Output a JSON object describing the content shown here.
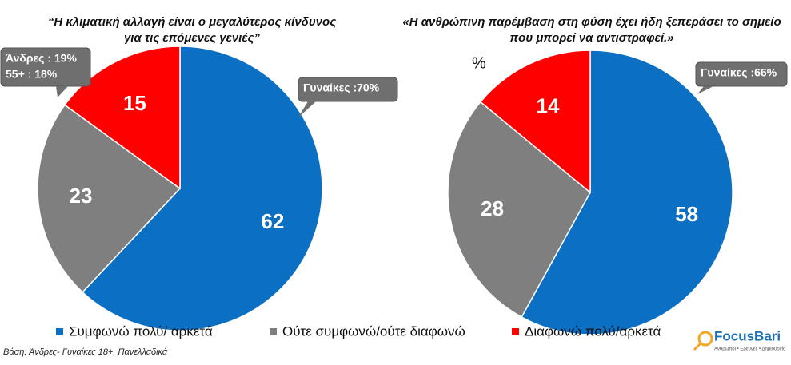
{
  "chart_data": [
    {
      "type": "pie",
      "title": [
        "“Η κλιματική αλλαγή είναι ο μεγαλύτερος κίνδυνος",
        "για τις επόμενες γενιές”"
      ],
      "categories": [
        "Συμφωνώ πολύ/ αρκετά",
        "Ούτε συμφωνώ/ούτε διαφωνώ",
        "Διαφωνώ πολύ/αρκετά"
      ],
      "values": [
        62,
        23,
        15
      ],
      "colors": [
        "#0b6fc3",
        "#7f7f7f",
        "#ff0000"
      ],
      "annotations": [
        [
          "Γυναίκες :70%"
        ],
        [
          "Άνδρες : 19%",
          "55+ :  18%"
        ]
      ]
    },
    {
      "type": "pie",
      "title": [
        "«Η ανθρώπινη παρέμβαση στη φύση έχει ήδη ξεπεράσει το σημείο",
        "που μπορεί να αντιστραφεί.»"
      ],
      "unit_label": "%",
      "categories": [
        "Συμφωνώ πολύ/ αρκετά",
        "Ούτε συμφωνώ/ούτε διαφωνώ",
        "Διαφωνώ πολύ/αρκετά"
      ],
      "values": [
        58,
        28,
        14
      ],
      "colors": [
        "#0b6fc3",
        "#7f7f7f",
        "#ff0000"
      ],
      "annotations": [
        [
          "Γυναίκες :66%"
        ]
      ]
    }
  ],
  "footnote": "Βάση: Άνδρες- Γυναίκες 18+, Πανελλαδικά",
  "logo": {
    "name": "FocusBari",
    "tagline": "Άνθρωποι • Ερευνες • Δημιουργία"
  }
}
